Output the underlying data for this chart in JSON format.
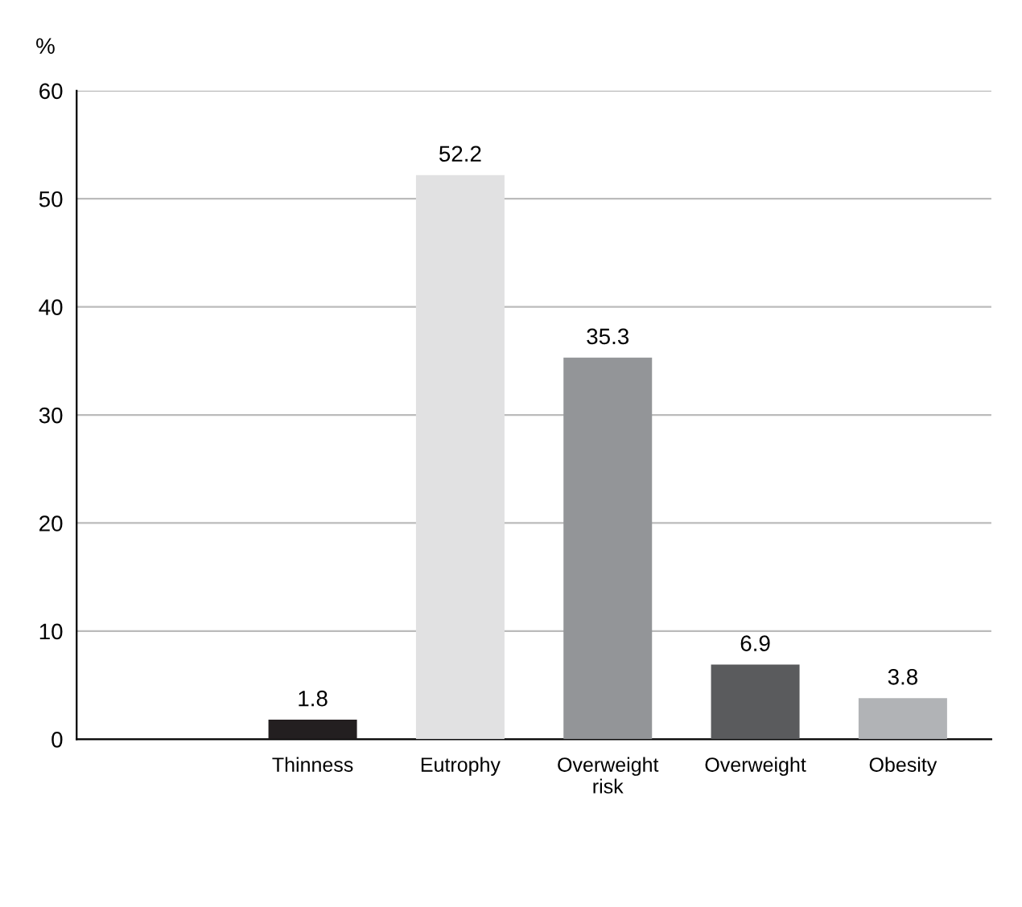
{
  "chart_data": {
    "type": "bar",
    "ylabel": "%",
    "categories": [
      "Thinness",
      "Eutrophy",
      "Overweight\nrisk",
      "Overweight",
      "Obesity"
    ],
    "values": [
      1.8,
      52.2,
      35.3,
      6.9,
      3.8
    ],
    "colors": [
      "#231f20",
      "#e1e1e2",
      "#939598",
      "#5a5b5d",
      "#b1b3b6"
    ],
    "ylim": [
      0,
      60
    ],
    "yticks": [
      0,
      10,
      20,
      30,
      40,
      50,
      60
    ],
    "grid": "y",
    "data_labels": true
  }
}
